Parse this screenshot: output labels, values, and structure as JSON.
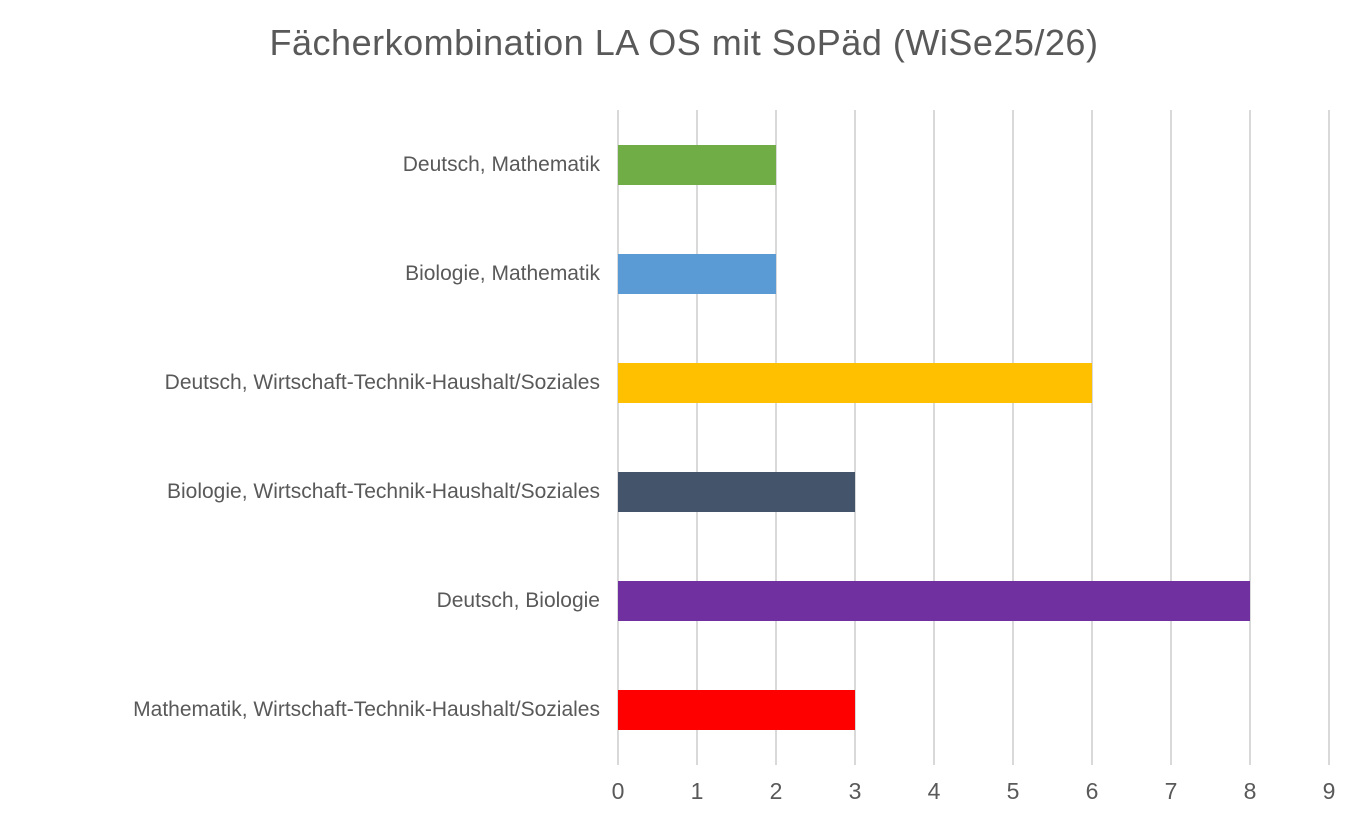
{
  "chart_data": {
    "type": "bar",
    "orientation": "horizontal",
    "title": "Fächerkombination LA OS mit SoPäd (WiSe25/26)",
    "categories": [
      "Deutsch, Mathematik",
      "Biologie, Mathematik",
      "Deutsch, Wirtschaft-Technik-Haushalt/Soziales",
      "Biologie, Wirtschaft-Technik-Haushalt/Soziales",
      "Deutsch, Biologie",
      "Mathematik, Wirtschaft-Technik-Haushalt/Soziales"
    ],
    "values": [
      2,
      2,
      6,
      3,
      8,
      3
    ],
    "bar_colors": [
      "#70AD47",
      "#5B9BD5",
      "#FFC000",
      "#44546A",
      "#7030A0",
      "#FF0000"
    ],
    "xlabel": "",
    "ylabel": "",
    "xlim": [
      0,
      9
    ],
    "xticks": [
      0,
      1,
      2,
      3,
      4,
      5,
      6,
      7,
      8,
      9
    ],
    "grid": "vertical-only",
    "legend": "none",
    "colors": {
      "grid": "#D9D9D9",
      "text": "#595959",
      "background": "#FFFFFF"
    }
  }
}
